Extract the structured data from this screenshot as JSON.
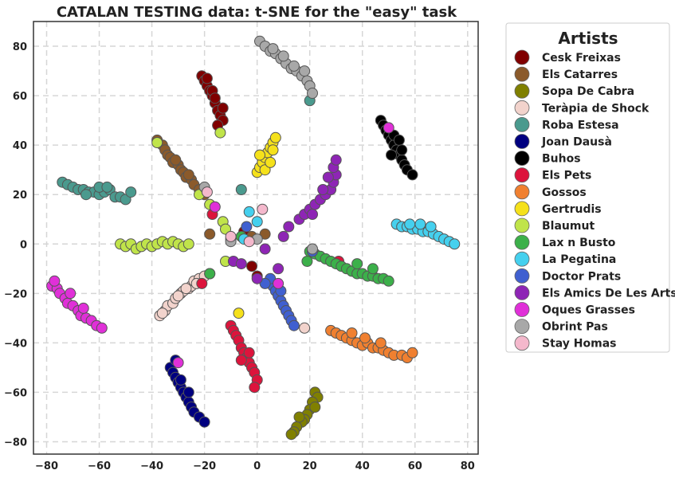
{
  "chart_data": {
    "type": "scatter",
    "title": "CATALAN TESTING data: t-SNE for the \"easy\" task",
    "xlabel": "",
    "ylabel": "",
    "xlim": [
      -85,
      84
    ],
    "ylim": [
      -85,
      90
    ],
    "xticks": [
      -80,
      -60,
      -40,
      -20,
      0,
      20,
      40,
      60,
      80
    ],
    "yticks": [
      -80,
      -60,
      -40,
      -20,
      0,
      20,
      40,
      60,
      80
    ],
    "grid": true,
    "legend": {
      "title": "Artists",
      "placement": "outside-right"
    },
    "series": [
      {
        "name": "Cesk Freixas",
        "color": "#800000",
        "points": [
          [
            -21,
            68
          ],
          [
            -20,
            66
          ],
          [
            -19,
            64
          ],
          [
            -18,
            62
          ],
          [
            -17,
            60
          ],
          [
            -16,
            57
          ],
          [
            -15,
            54
          ],
          [
            -14,
            52
          ],
          [
            -13,
            50
          ],
          [
            -15,
            48
          ],
          [
            -17,
            62
          ],
          [
            -19,
            67
          ],
          [
            -16,
            59
          ],
          [
            -13,
            55
          ],
          [
            -5,
            5
          ],
          [
            -2,
            -9
          ],
          [
            0,
            -13
          ]
        ]
      },
      {
        "name": "Els Catarres",
        "color": "#8b5a2b",
        "points": [
          [
            -38,
            42
          ],
          [
            -36,
            40
          ],
          [
            -35,
            38
          ],
          [
            -34,
            36
          ],
          [
            -33,
            35
          ],
          [
            -32,
            33
          ],
          [
            -30,
            32
          ],
          [
            -29,
            30
          ],
          [
            -28,
            29
          ],
          [
            -27,
            27
          ],
          [
            -25,
            26
          ],
          [
            -24,
            24
          ],
          [
            -22,
            22
          ],
          [
            -20,
            20
          ],
          [
            -31,
            34
          ],
          [
            -26,
            28
          ],
          [
            -18,
            4
          ],
          [
            3,
            4
          ],
          [
            -2,
            3
          ]
        ]
      },
      {
        "name": "Sopa De Cabra",
        "color": "#808000",
        "points": [
          [
            22,
            -60
          ],
          [
            23,
            -62
          ],
          [
            21,
            -64
          ],
          [
            20,
            -67
          ],
          [
            19,
            -69
          ],
          [
            18,
            -71
          ],
          [
            17,
            -72
          ],
          [
            15,
            -74
          ],
          [
            14,
            -76
          ],
          [
            13,
            -77
          ],
          [
            16,
            -70
          ],
          [
            22,
            -66
          ]
        ]
      },
      {
        "name": "Teràpia de Shock",
        "color": "#f2d3cc",
        "points": [
          [
            -37,
            -29
          ],
          [
            -35,
            -27
          ],
          [
            -34,
            -25
          ],
          [
            -32,
            -24
          ],
          [
            -31,
            -22
          ],
          [
            -29,
            -20
          ],
          [
            -28,
            -19
          ],
          [
            -26,
            -18
          ],
          [
            -25,
            -17
          ],
          [
            -24,
            -15
          ],
          [
            -22,
            -14
          ],
          [
            -20,
            -13
          ],
          [
            -18,
            -12
          ],
          [
            -36,
            -28
          ],
          [
            -30,
            -21
          ],
          [
            -27,
            -18
          ],
          [
            -23,
            -16
          ],
          [
            -10,
            2
          ],
          [
            18,
            -34
          ]
        ]
      },
      {
        "name": "Roba Estesa",
        "color": "#4a9a8e",
        "points": [
          [
            -74,
            25
          ],
          [
            -72,
            24
          ],
          [
            -70,
            23
          ],
          [
            -68,
            22
          ],
          [
            -66,
            22
          ],
          [
            -64,
            21
          ],
          [
            -62,
            21
          ],
          [
            -60,
            20
          ],
          [
            -58,
            21
          ],
          [
            -56,
            22
          ],
          [
            -54,
            19
          ],
          [
            -52,
            19
          ],
          [
            -50,
            18
          ],
          [
            -48,
            21
          ],
          [
            -60,
            23
          ],
          [
            -57,
            23
          ],
          [
            -65,
            20
          ],
          [
            -6,
            22
          ],
          [
            20,
            58
          ]
        ]
      },
      {
        "name": "Joan Dausà",
        "color": "#000080",
        "points": [
          [
            -33,
            -50
          ],
          [
            -32,
            -52
          ],
          [
            -31,
            -54
          ],
          [
            -30,
            -56
          ],
          [
            -29,
            -58
          ],
          [
            -28,
            -60
          ],
          [
            -27,
            -62
          ],
          [
            -26,
            -64
          ],
          [
            -25,
            -66
          ],
          [
            -24,
            -68
          ],
          [
            -22,
            -70
          ],
          [
            -20,
            -72
          ],
          [
            -31,
            -47
          ],
          [
            -29,
            -55
          ],
          [
            -26,
            -60
          ]
        ]
      },
      {
        "name": "Buhos",
        "color": "#000000",
        "points": [
          [
            47,
            50
          ],
          [
            48,
            48
          ],
          [
            49,
            46
          ],
          [
            50,
            44
          ],
          [
            51,
            42
          ],
          [
            52,
            40
          ],
          [
            53,
            38
          ],
          [
            54,
            36
          ],
          [
            55,
            34
          ],
          [
            56,
            32
          ],
          [
            57,
            30
          ],
          [
            59,
            28
          ],
          [
            52,
            44
          ],
          [
            54,
            42
          ],
          [
            55,
            38
          ],
          [
            51,
            36
          ]
        ]
      },
      {
        "name": "Els Pets",
        "color": "#dc143c",
        "points": [
          [
            -10,
            -33
          ],
          [
            -9,
            -35
          ],
          [
            -8,
            -37
          ],
          [
            -7,
            -39
          ],
          [
            -6,
            -42
          ],
          [
            -5,
            -44
          ],
          [
            -4,
            -46
          ],
          [
            -3,
            -48
          ],
          [
            -2,
            -50
          ],
          [
            -1,
            -52
          ],
          [
            0,
            -55
          ],
          [
            -1,
            -58
          ],
          [
            -6,
            -47
          ],
          [
            -3,
            -44
          ],
          [
            -21,
            -16
          ],
          [
            -17,
            12
          ],
          [
            31,
            -7
          ]
        ]
      },
      {
        "name": "Gossos",
        "color": "#f08030",
        "points": [
          [
            28,
            -35
          ],
          [
            30,
            -36
          ],
          [
            32,
            -37
          ],
          [
            34,
            -38
          ],
          [
            36,
            -39
          ],
          [
            38,
            -40
          ],
          [
            40,
            -41
          ],
          [
            42,
            -40
          ],
          [
            44,
            -42
          ],
          [
            46,
            -42
          ],
          [
            48,
            -43
          ],
          [
            50,
            -44
          ],
          [
            52,
            -45
          ],
          [
            55,
            -45
          ],
          [
            57,
            -46
          ],
          [
            59,
            -44
          ],
          [
            36,
            -36
          ],
          [
            41,
            -38
          ],
          [
            47,
            -40
          ]
        ]
      },
      {
        "name": "Gertrudis",
        "color": "#f5e11b",
        "points": [
          [
            0,
            29
          ],
          [
            1,
            31
          ],
          [
            2,
            33
          ],
          [
            3,
            35
          ],
          [
            4,
            37
          ],
          [
            5,
            39
          ],
          [
            6,
            41
          ],
          [
            7,
            43
          ],
          [
            1,
            36
          ],
          [
            3,
            30
          ],
          [
            5,
            33
          ],
          [
            6,
            38
          ],
          [
            -7,
            -28
          ]
        ]
      },
      {
        "name": "Blaumut",
        "color": "#c0e44a",
        "points": [
          [
            -52,
            0
          ],
          [
            -50,
            -1
          ],
          [
            -48,
            0
          ],
          [
            -46,
            -2
          ],
          [
            -44,
            -1
          ],
          [
            -42,
            0
          ],
          [
            -40,
            -1
          ],
          [
            -38,
            0
          ],
          [
            -36,
            1
          ],
          [
            -34,
            0
          ],
          [
            -32,
            1
          ],
          [
            -30,
            0
          ],
          [
            -28,
            -1
          ],
          [
            -26,
            0
          ],
          [
            -13,
            9
          ],
          [
            -12,
            6
          ],
          [
            -22,
            20
          ],
          [
            -14,
            45
          ],
          [
            -18,
            16
          ],
          [
            -38,
            41
          ],
          [
            -12,
            -7
          ]
        ]
      },
      {
        "name": "Lax n Busto",
        "color": "#3cb04a",
        "points": [
          [
            20,
            -3
          ],
          [
            22,
            -4
          ],
          [
            24,
            -5
          ],
          [
            26,
            -6
          ],
          [
            28,
            -7
          ],
          [
            30,
            -8
          ],
          [
            32,
            -9
          ],
          [
            34,
            -10
          ],
          [
            36,
            -11
          ],
          [
            38,
            -12
          ],
          [
            40,
            -12
          ],
          [
            42,
            -13
          ],
          [
            44,
            -13
          ],
          [
            46,
            -14
          ],
          [
            48,
            -14
          ],
          [
            50,
            -15
          ],
          [
            38,
            -8
          ],
          [
            44,
            -10
          ],
          [
            19,
            -7
          ],
          [
            -6,
            3
          ],
          [
            -18,
            -12
          ]
        ]
      },
      {
        "name": "La Pegatina",
        "color": "#45d0ee",
        "points": [
          [
            53,
            8
          ],
          [
            55,
            7
          ],
          [
            57,
            7
          ],
          [
            59,
            6
          ],
          [
            61,
            6
          ],
          [
            63,
            5
          ],
          [
            65,
            5
          ],
          [
            67,
            4
          ],
          [
            69,
            3
          ],
          [
            71,
            2
          ],
          [
            73,
            1
          ],
          [
            75,
            0
          ],
          [
            58,
            8
          ],
          [
            62,
            8
          ],
          [
            66,
            7
          ],
          [
            -3,
            13
          ],
          [
            0,
            9
          ],
          [
            -5,
            2
          ]
        ]
      },
      {
        "name": "Doctor Prats",
        "color": "#4060d0",
        "points": [
          [
            6,
            -17
          ],
          [
            7,
            -19
          ],
          [
            8,
            -21
          ],
          [
            9,
            -23
          ],
          [
            10,
            -25
          ],
          [
            11,
            -27
          ],
          [
            12,
            -29
          ],
          [
            13,
            -31
          ],
          [
            14,
            -33
          ],
          [
            5,
            -14
          ],
          [
            3,
            -16
          ],
          [
            9,
            -19
          ],
          [
            -4,
            7
          ],
          [
            21,
            -3
          ]
        ]
      },
      {
        "name": "Els Amics De Les Arts",
        "color": "#8e25b5",
        "points": [
          [
            16,
            10
          ],
          [
            18,
            12
          ],
          [
            20,
            14
          ],
          [
            22,
            16
          ],
          [
            24,
            18
          ],
          [
            26,
            20
          ],
          [
            28,
            22
          ],
          [
            29,
            25
          ],
          [
            30,
            28
          ],
          [
            29,
            31
          ],
          [
            30,
            34
          ],
          [
            25,
            22
          ],
          [
            27,
            27
          ],
          [
            21,
            12
          ],
          [
            12,
            7
          ],
          [
            10,
            3
          ],
          [
            3,
            -2
          ],
          [
            -9,
            -7
          ],
          [
            -6,
            -8
          ],
          [
            0,
            -14
          ],
          [
            8,
            -10
          ]
        ]
      },
      {
        "name": "Oques Grasses",
        "color": "#e030d8",
        "points": [
          [
            -78,
            -17
          ],
          [
            -76,
            -18
          ],
          [
            -75,
            -20
          ],
          [
            -73,
            -22
          ],
          [
            -72,
            -24
          ],
          [
            -70,
            -25
          ],
          [
            -68,
            -27
          ],
          [
            -67,
            -29
          ],
          [
            -65,
            -30
          ],
          [
            -63,
            -31
          ],
          [
            -61,
            -33
          ],
          [
            -59,
            -34
          ],
          [
            -77,
            -15
          ],
          [
            -71,
            -20
          ],
          [
            -66,
            -26
          ],
          [
            -30,
            -48
          ],
          [
            -16,
            15
          ],
          [
            50,
            47
          ],
          [
            8,
            -16
          ]
        ]
      },
      {
        "name": "Obrint Pas",
        "color": "#a8a8a8",
        "points": [
          [
            1,
            82
          ],
          [
            3,
            80
          ],
          [
            5,
            78
          ],
          [
            7,
            77
          ],
          [
            9,
            75
          ],
          [
            11,
            73
          ],
          [
            13,
            71
          ],
          [
            15,
            70
          ],
          [
            17,
            68
          ],
          [
            19,
            66
          ],
          [
            20,
            64
          ],
          [
            21,
            61
          ],
          [
            6,
            79
          ],
          [
            10,
            76
          ],
          [
            14,
            72
          ],
          [
            18,
            70
          ],
          [
            -20,
            23
          ],
          [
            -10,
            1
          ],
          [
            0,
            2
          ],
          [
            21,
            -2
          ]
        ]
      },
      {
        "name": "Stay Homas",
        "color": "#f4b8cc",
        "points": [
          [
            -19,
            21
          ],
          [
            -10,
            3
          ],
          [
            2,
            14
          ],
          [
            -3,
            1
          ]
        ]
      }
    ]
  }
}
